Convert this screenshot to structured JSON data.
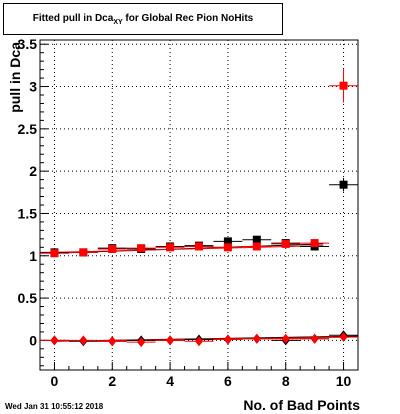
{
  "title": {
    "prefix": "Fitted pull in Dca",
    "subscript": "XY",
    "suffix": " for Global Rec Pion NoHits"
  },
  "timestamp": "Wed Jan 31 10:55:12 2018",
  "chart_data": {
    "type": "scatter",
    "title": "Fitted pull in Dca_XY for Global Rec Pion NoHits",
    "xlabel": "No. of Bad Points",
    "ylabel": "pull in Dca",
    "xlim": [
      -0.5,
      10.5
    ],
    "ylim": [
      -0.35,
      3.55
    ],
    "xticks": [
      0,
      2,
      4,
      6,
      8,
      10
    ],
    "yticks": [
      0,
      0.5,
      1,
      1.5,
      2,
      2.5,
      3,
      3.5
    ],
    "ytick_labels": [
      "0",
      "0.5",
      "1",
      "1.5",
      "2",
      "2.5",
      "3",
      "3.5"
    ],
    "grid": true,
    "series": [
      {
        "marker": "square",
        "color": "#000000",
        "x": [
          0,
          1,
          2,
          3,
          4,
          5,
          6,
          7,
          8,
          9,
          10
        ],
        "y": [
          1.04,
          1.04,
          1.09,
          1.08,
          1.11,
          1.12,
          1.17,
          1.19,
          1.15,
          1.11,
          1.84
        ],
        "yerr": [
          0.03,
          0.02,
          0.02,
          0.02,
          0.03,
          0.03,
          0.03,
          0.03,
          0.04,
          0.04,
          0.08
        ]
      },
      {
        "marker": "square",
        "color": "#ff0000",
        "x": [
          0,
          1,
          2,
          3,
          4,
          5,
          6,
          7,
          8,
          9,
          10
        ],
        "y": [
          1.03,
          1.04,
          1.08,
          1.09,
          1.1,
          1.11,
          1.1,
          1.11,
          1.14,
          1.15,
          3.01
        ],
        "yerr": [
          0.03,
          0.02,
          0.02,
          0.02,
          0.03,
          0.03,
          0.03,
          0.03,
          0.04,
          0.04,
          0.2
        ]
      },
      {
        "marker": "diamond",
        "color": "#000000",
        "x": [
          0,
          1,
          2,
          3,
          4,
          5,
          6,
          7,
          8,
          9,
          10
        ],
        "y": [
          0.0,
          -0.01,
          -0.01,
          0.0,
          0.0,
          0.01,
          0.01,
          0.02,
          0.0,
          0.02,
          0.06
        ],
        "yerr": [
          0.02,
          0.02,
          0.02,
          0.02,
          0.02,
          0.02,
          0.02,
          0.02,
          0.03,
          0.03,
          0.05
        ]
      },
      {
        "marker": "diamond",
        "color": "#ff0000",
        "x": [
          0,
          1,
          2,
          3,
          4,
          5,
          6,
          7,
          8,
          9,
          10
        ],
        "y": [
          0.0,
          0.0,
          -0.01,
          -0.02,
          0.0,
          -0.01,
          0.01,
          0.02,
          0.02,
          0.02,
          0.04
        ],
        "yerr": [
          0.02,
          0.02,
          0.02,
          0.02,
          0.02,
          0.02,
          0.02,
          0.02,
          0.03,
          0.03,
          0.05
        ]
      }
    ],
    "fit_lines": [
      {
        "color": "#000000",
        "x": [
          0,
          9.3
        ],
        "y": [
          1.03,
          1.14
        ]
      },
      {
        "color": "#ff0000",
        "x": [
          0,
          9.3
        ],
        "y": [
          1.04,
          1.12
        ]
      },
      {
        "color": "#000000",
        "x": [
          0,
          10.5
        ],
        "y": [
          -0.01,
          0.05
        ]
      },
      {
        "color": "#ff0000",
        "x": [
          0,
          10.5
        ],
        "y": [
          -0.01,
          0.04
        ]
      }
    ]
  }
}
